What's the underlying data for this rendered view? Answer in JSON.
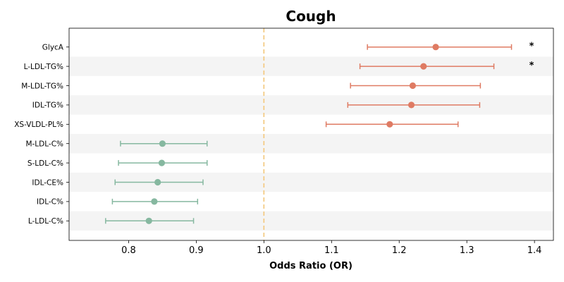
{
  "chart_data": {
    "type": "scatter",
    "subtype": "forest-plot",
    "title": "Cough",
    "xlabel": "Odds Ratio (OR)",
    "ylabel": "",
    "xlim": [
      0.712,
      1.428
    ],
    "xticks": [
      0.8,
      0.9,
      1.0,
      1.1,
      1.2,
      1.3,
      1.4
    ],
    "xtick_labels": [
      "0.8",
      "0.9",
      "1.0",
      "1.1",
      "1.2",
      "1.3",
      "1.4"
    ],
    "reference_line": 1.0,
    "grid": false,
    "alternating_row_shading": true,
    "categories": [
      "GlycA",
      "L-LDL-TG%",
      "M-LDL-TG%",
      "IDL-TG%",
      "XS-VLDL-PL%",
      "M-LDL-C%",
      "S-LDL-C%",
      "IDL-CE%",
      "IDL-C%",
      "L-LDL-C%"
    ],
    "or": [
      1.254,
      1.236,
      1.22,
      1.218,
      1.186,
      0.85,
      0.849,
      0.843,
      0.838,
      0.83
    ],
    "ci_lower": [
      1.153,
      1.142,
      1.128,
      1.124,
      1.092,
      0.788,
      0.785,
      0.78,
      0.776,
      0.766
    ],
    "ci_upper": [
      1.366,
      1.34,
      1.32,
      1.319,
      1.287,
      0.916,
      0.916,
      0.91,
      0.902,
      0.896
    ],
    "significant": [
      true,
      true,
      false,
      false,
      false,
      false,
      false,
      false,
      false,
      false
    ],
    "significance_marker": "*",
    "colors": {
      "positive": "#df7b63",
      "negative": "#86b8a0",
      "reference": "#f3c77a",
      "row_shade": "#f4f4f4"
    }
  }
}
